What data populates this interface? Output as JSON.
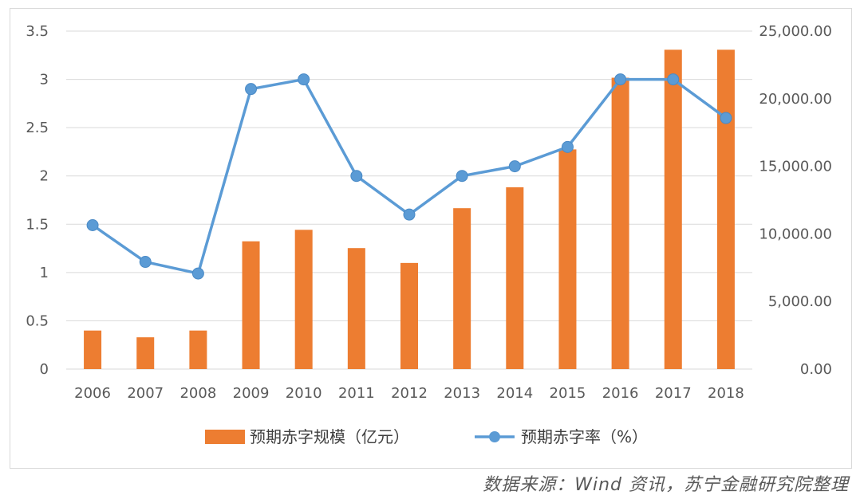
{
  "chart_data": {
    "type": "bar",
    "categories": [
      "2006",
      "2007",
      "2008",
      "2009",
      "2010",
      "2011",
      "2012",
      "2013",
      "2014",
      "2015",
      "2016",
      "2017",
      "2018"
    ],
    "series": [
      {
        "name": "预期赤字规模（亿元）",
        "type": "bar",
        "axis": "right",
        "color": "#ed7d31",
        "values": [
          2850,
          2350,
          2850,
          9450,
          10300,
          8950,
          7850,
          11900,
          13450,
          16250,
          21550,
          23620,
          23620
        ]
      },
      {
        "name": "预期赤字率（%）",
        "type": "line",
        "axis": "left",
        "color": "#5b9bd5",
        "values": [
          1.49,
          1.11,
          0.99,
          2.9,
          3.0,
          2.0,
          1.6,
          2.0,
          2.1,
          2.3,
          3.0,
          3.0,
          2.6
        ]
      }
    ],
    "y_left": {
      "ylim": [
        0,
        3.5
      ],
      "ticks": [
        "0",
        "0.5",
        "1",
        "1.5",
        "2",
        "2.5",
        "3",
        "3.5"
      ]
    },
    "y_right": {
      "ylim": [
        0,
        25000
      ],
      "ticks": [
        "0.00",
        "5,000.00",
        "10,000.00",
        "15,000.00",
        "20,000.00",
        "25,000.00"
      ]
    },
    "grid": true,
    "legend": "bottom-center"
  },
  "source_note": "数据来源：Wind 资讯，苏宁金融研究院整理"
}
